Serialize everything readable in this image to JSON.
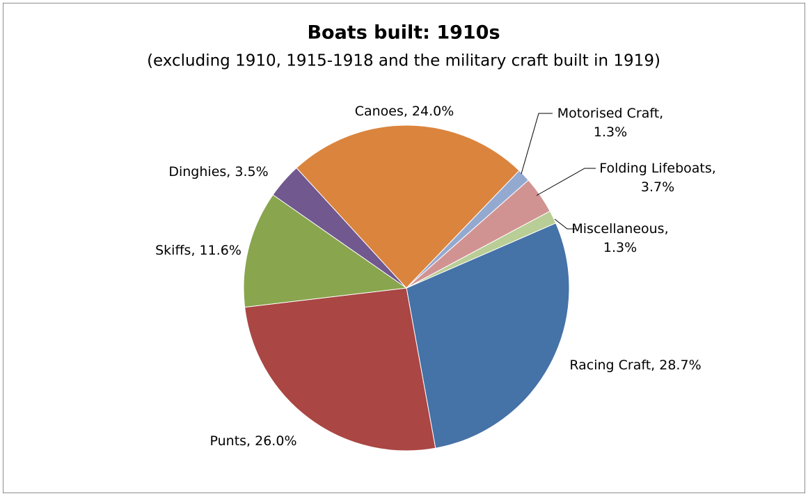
{
  "chart_data": {
    "type": "pie",
    "title": "Boats built: 1910s",
    "subtitle": "(excluding 1910, 1915-1918 and the military craft built in 1919)",
    "categories": [
      "Racing Craft",
      "Punts",
      "Skiffs",
      "Dinghies",
      "Canoes",
      "Motorised Craft",
      "Folding Lifeboats",
      "Miscellaneous"
    ],
    "values": [
      28.7,
      26.0,
      11.6,
      3.5,
      24.0,
      1.3,
      3.7,
      1.3
    ],
    "value_labels": [
      [
        "Racing Craft, 28.7%"
      ],
      [
        "Punts, 26.0%"
      ],
      [
        "Skiffs, 11.6%"
      ],
      [
        "Dinghies, 3.5%"
      ],
      [
        "Canoes, 24.0%"
      ],
      [
        "Motorised Craft,",
        "1.3%"
      ],
      [
        "Folding Lifeboats,",
        "3.7%"
      ],
      [
        "Miscellaneous,",
        "1.3%"
      ]
    ],
    "colors": [
      "#4572a7",
      "#aa4643",
      "#89a54e",
      "#71588f",
      "#db843d",
      "#93a9d0",
      "#d19392",
      "#b9cd96"
    ]
  }
}
